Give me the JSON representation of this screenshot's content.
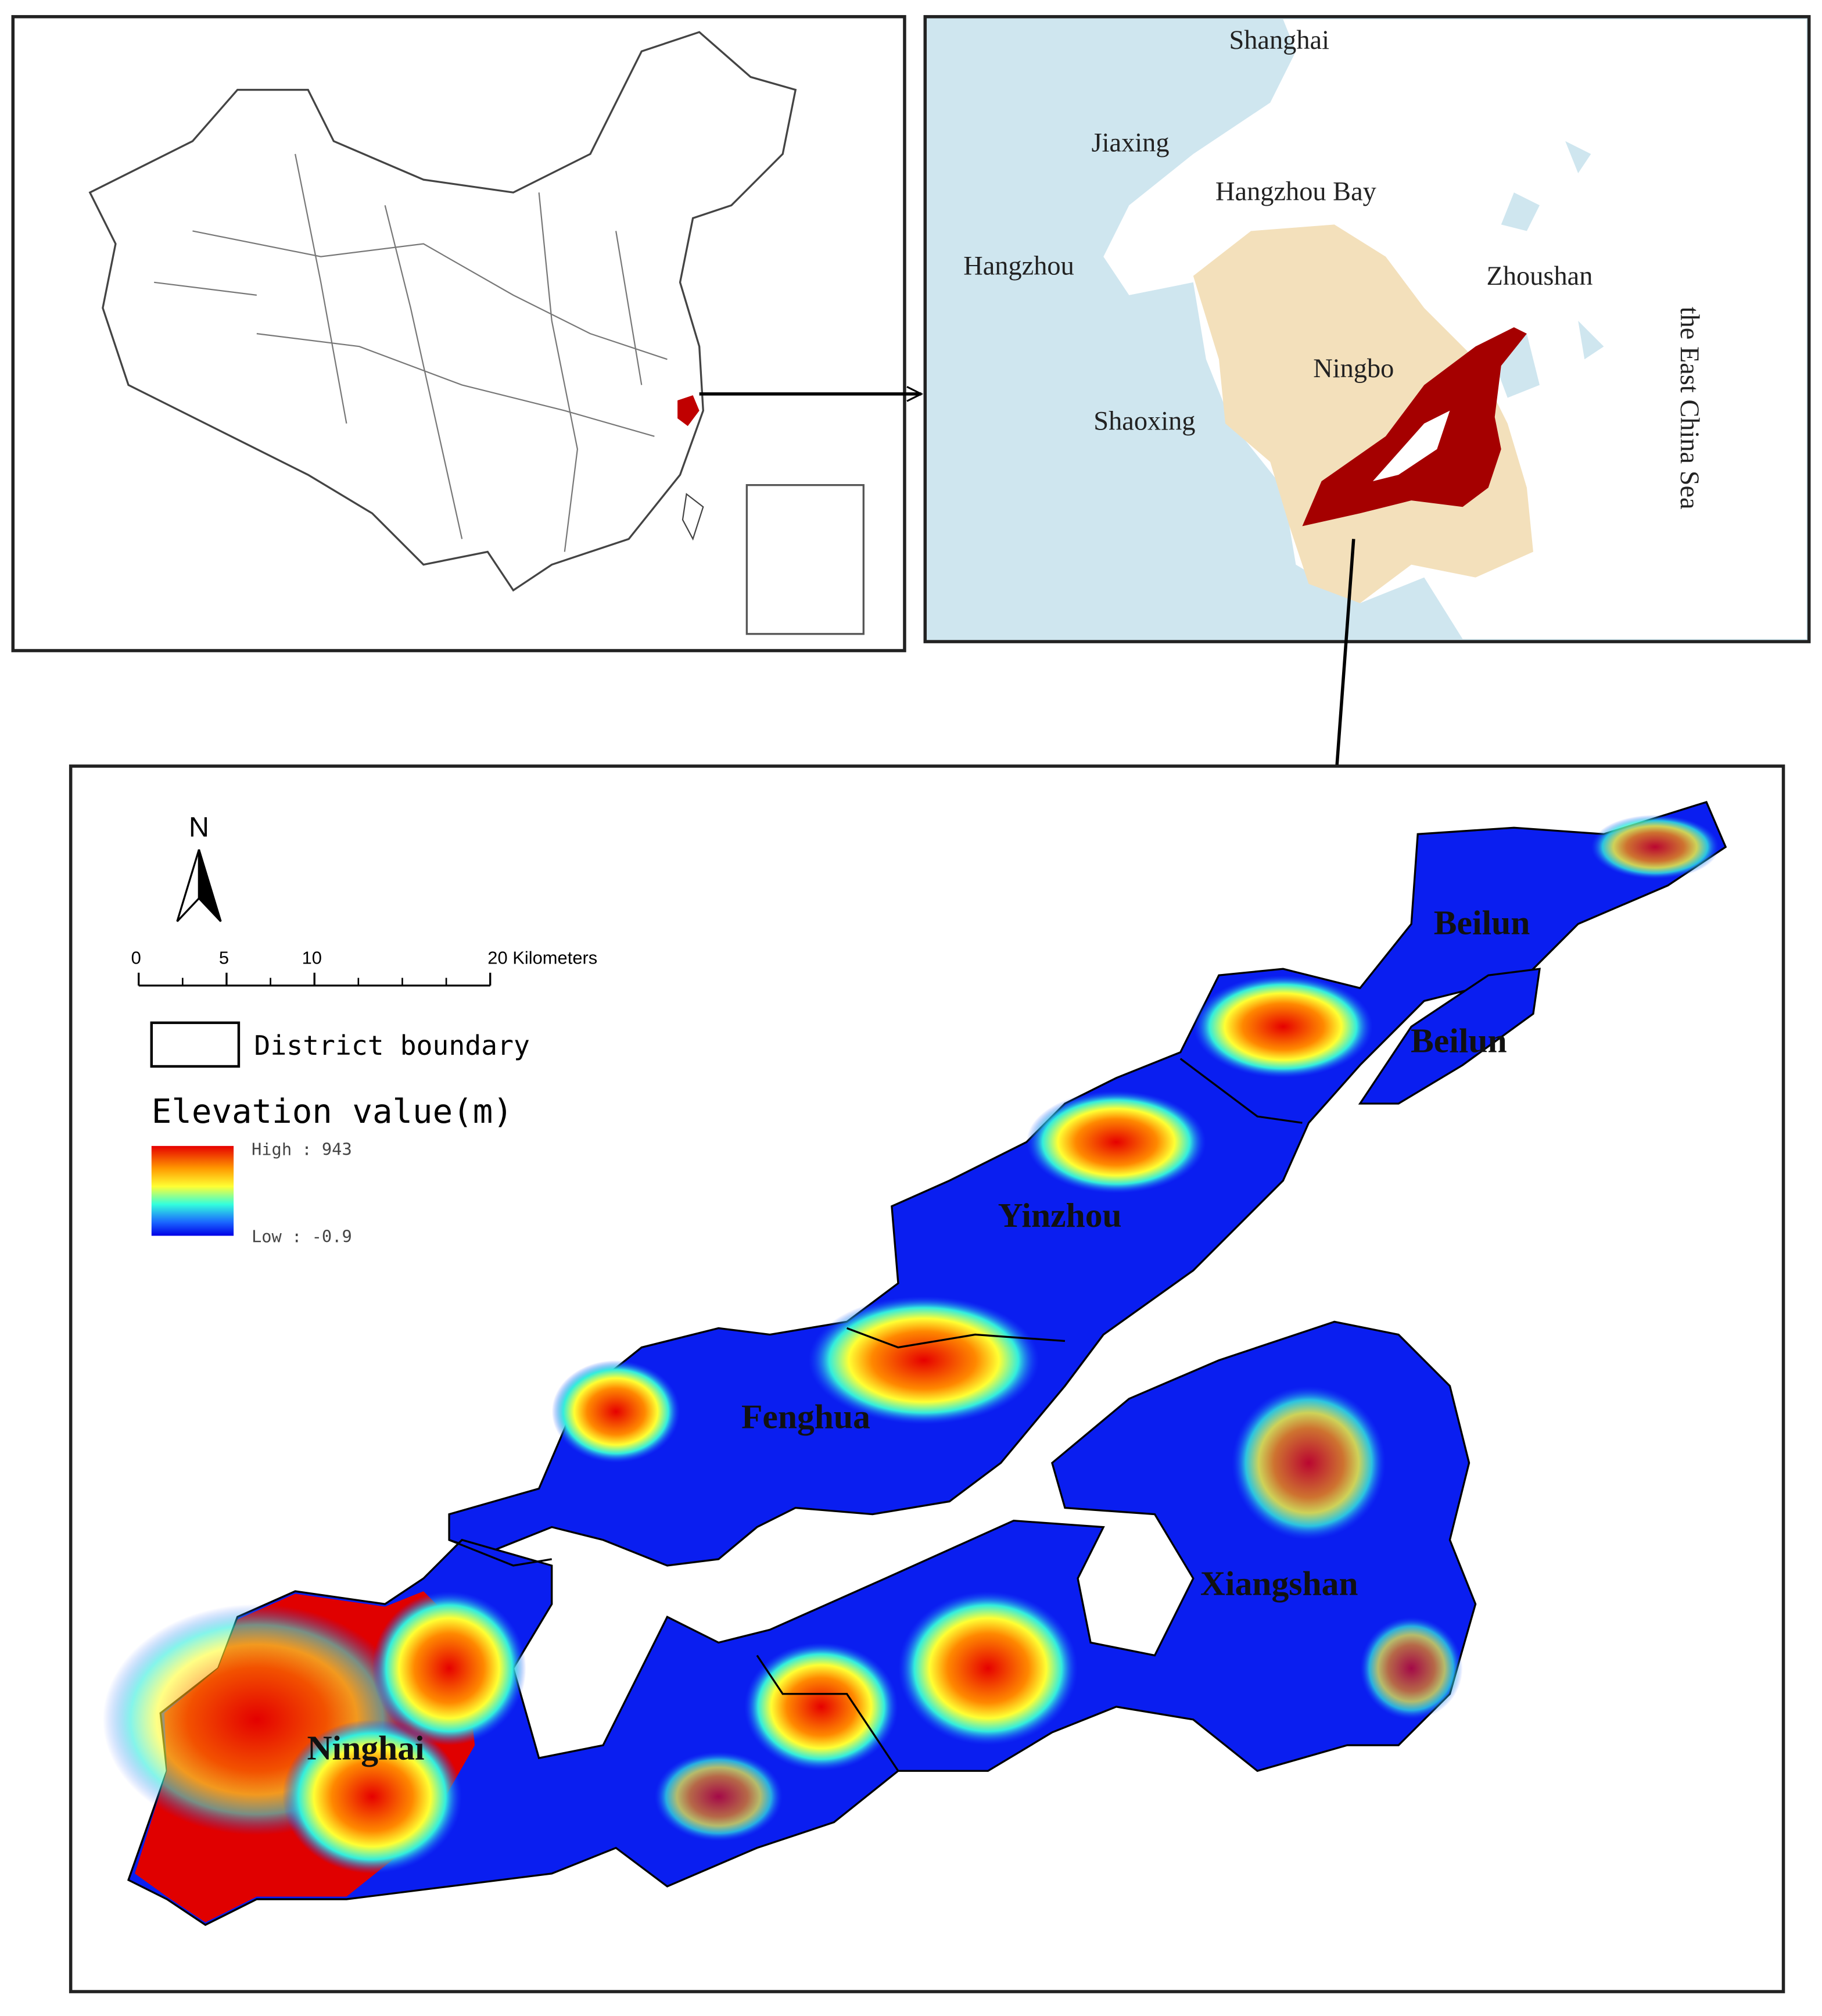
{
  "regional_map": {
    "labels": [
      "Shanghai",
      "Jiaxing",
      "Hangzhou Bay",
      "Hangzhou",
      "Zhoushan",
      "Ningbo",
      "Shaoxing",
      "the East China Sea"
    ]
  },
  "elevation_map": {
    "north_arrow": "N",
    "scale_bar": {
      "ticks": [
        0,
        5,
        10,
        {
          "value": 20,
          "label": "20 Kilometers"
        }
      ]
    },
    "legend": {
      "boundary": "District boundary",
      "title": "Elevation value(m)",
      "high": "High : 943",
      "low": "Low : -0.9"
    },
    "districts": [
      "Beilun",
      "Beilun",
      "Yinzhou",
      "Fenghua",
      "Xiangshan",
      "Ninghai"
    ]
  }
}
